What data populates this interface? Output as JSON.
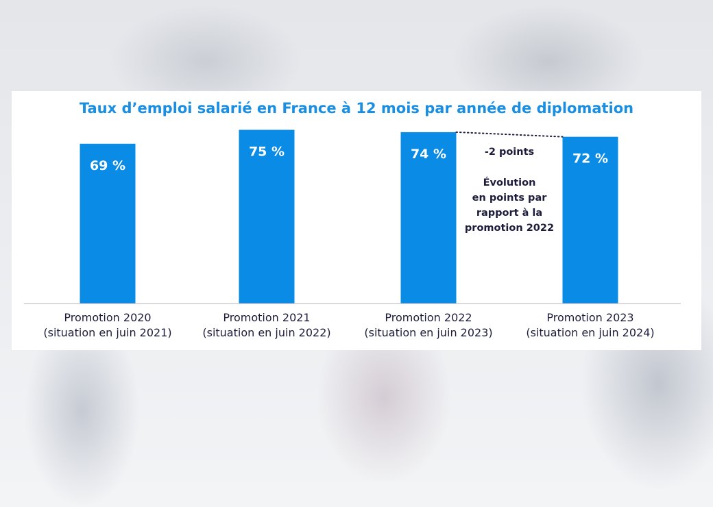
{
  "chart_data": {
    "type": "bar",
    "title": "Taux d’emploi salarié en France à 12 mois par année de diplomation",
    "categories": [
      [
        "Promotion 2020",
        "(situation en juin 2021)"
      ],
      [
        "Promotion 2021",
        "(situation en juin 2022)"
      ],
      [
        "Promotion 2022",
        "(situation en juin 2023)"
      ],
      [
        "Promotion 2023",
        "(situation en juin 2024)"
      ]
    ],
    "values": [
      69,
      75,
      74,
      72
    ],
    "data_labels": [
      "69 %",
      "75 %",
      "74 %",
      "72 %"
    ],
    "ylim": [
      0,
      100
    ],
    "grid": false,
    "bar_color": "#0a8ce6",
    "annotation": {
      "headline": "-2 points",
      "lines": [
        "Évolution",
        "en points par",
        "rapport à la",
        "promotion 2022"
      ]
    }
  }
}
